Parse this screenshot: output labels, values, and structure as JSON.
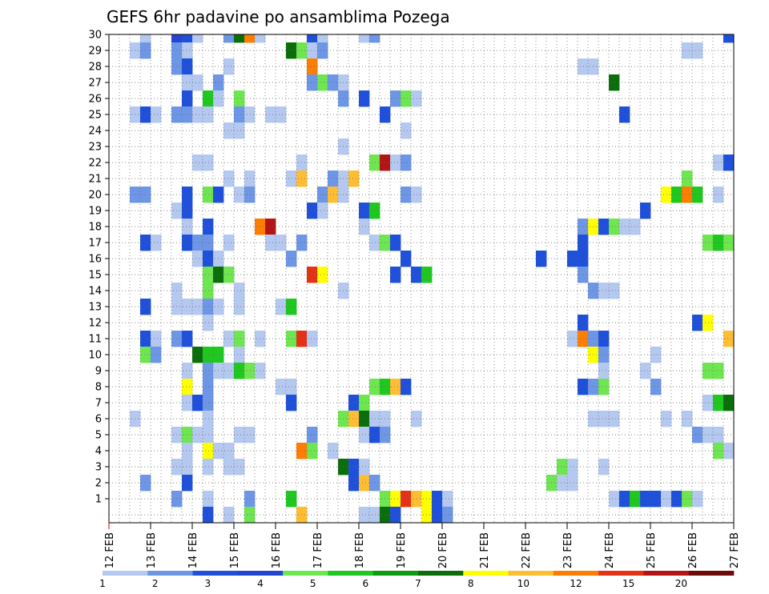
{
  "chart_data": {
    "type": "heatmap",
    "title": "GEFS 6hr padavine po ansamblima Pozega",
    "xlabel": "",
    "ylabel": "",
    "grid": true,
    "x_range": [
      0,
      60
    ],
    "y_range": [
      0,
      30
    ],
    "x_tick_labels": [
      "12 FEB",
      "13 FEB",
      "14 FEB",
      "15 FEB",
      "16 FEB",
      "17 FEB",
      "18 FEB",
      "19 FEB",
      "20 FEB",
      "21 FEB",
      "22 FEB",
      "23 FEB",
      "24 FEB",
      "25 FEB",
      "26 FEB",
      "27 FEB"
    ],
    "y_ticks": [
      1,
      2,
      3,
      4,
      5,
      6,
      7,
      8,
      9,
      10,
      11,
      12,
      13,
      14,
      15,
      16,
      17,
      18,
      19,
      20,
      21,
      22,
      23,
      24,
      25,
      26,
      27,
      28,
      29,
      30
    ],
    "colorbar": {
      "labels": [
        "1",
        "2",
        "3",
        "4",
        "5",
        "6",
        "7",
        "8",
        "10",
        "12",
        "15",
        "20"
      ],
      "colors": [
        "#b4c8f0",
        "#6e96e6",
        "#1e50dc",
        "#2346d2",
        "#6ee650",
        "#1ec81e",
        "#0f9b0f",
        "#0a6e0a",
        "#ffff00",
        "#ffbe32",
        "#ff7d00",
        "#e63214",
        "#b41414",
        "#6e0a0a"
      ]
    },
    "cells": [
      [
        30,
        3,
        "#b4c8f0"
      ],
      [
        30,
        6,
        "#2346d2"
      ],
      [
        30,
        7,
        "#1e50dc"
      ],
      [
        30,
        8,
        "#b4c8f0"
      ],
      [
        30,
        11,
        "#6e96e6"
      ],
      [
        30,
        12,
        "#0a6e0a"
      ],
      [
        30,
        13,
        "#ff7d00"
      ],
      [
        30,
        14,
        "#b4c8f0"
      ],
      [
        30,
        19,
        "#1e50dc"
      ],
      [
        30,
        20,
        "#b4c8f0"
      ],
      [
        30,
        24,
        "#b4c8f0"
      ],
      [
        30,
        25,
        "#6e96e6"
      ],
      [
        30,
        59,
        "#1e50dc"
      ],
      [
        29,
        2,
        "#b4c8f0"
      ],
      [
        29,
        3,
        "#6e96e6"
      ],
      [
        29,
        6,
        "#6e96e6"
      ],
      [
        29,
        7,
        "#b4c8f0"
      ],
      [
        29,
        17,
        "#0a6e0a"
      ],
      [
        29,
        18,
        "#6ee650"
      ],
      [
        29,
        19,
        "#b4c8f0"
      ],
      [
        29,
        20,
        "#6e96e6"
      ],
      [
        29,
        55,
        "#b4c8f0"
      ],
      [
        29,
        56,
        "#b4c8f0"
      ],
      [
        28,
        6,
        "#6e96e6"
      ],
      [
        28,
        7,
        "#1e50dc"
      ],
      [
        28,
        11,
        "#b4c8f0"
      ],
      [
        28,
        19,
        "#ff7d00"
      ],
      [
        28,
        45,
        "#b4c8f0"
      ],
      [
        28,
        46,
        "#b4c8f0"
      ],
      [
        27,
        7,
        "#b4c8f0"
      ],
      [
        27,
        8,
        "#b4c8f0"
      ],
      [
        27,
        10,
        "#6e96e6"
      ],
      [
        27,
        19,
        "#6e96e6"
      ],
      [
        27,
        20,
        "#6ee650"
      ],
      [
        27,
        21,
        "#6e96e6"
      ],
      [
        27,
        22,
        "#b4c8f0"
      ],
      [
        27,
        48,
        "#0a6e0a"
      ],
      [
        26,
        7,
        "#1e50dc"
      ],
      [
        26,
        9,
        "#1ec81e"
      ],
      [
        26,
        10,
        "#b4c8f0"
      ],
      [
        26,
        12,
        "#6ee650"
      ],
      [
        26,
        22,
        "#6e96e6"
      ],
      [
        26,
        24,
        "#1e50dc"
      ],
      [
        26,
        27,
        "#6e96e6"
      ],
      [
        26,
        28,
        "#6ee650"
      ],
      [
        26,
        29,
        "#b4c8f0"
      ],
      [
        25,
        2,
        "#b4c8f0"
      ],
      [
        25,
        3,
        "#1e50dc"
      ],
      [
        25,
        4,
        "#b4c8f0"
      ],
      [
        25,
        6,
        "#6e96e6"
      ],
      [
        25,
        7,
        "#6e96e6"
      ],
      [
        25,
        8,
        "#b4c8f0"
      ],
      [
        25,
        9,
        "#b4c8f0"
      ],
      [
        25,
        12,
        "#6e96e6"
      ],
      [
        25,
        13,
        "#b4c8f0"
      ],
      [
        25,
        15,
        "#b4c8f0"
      ],
      [
        25,
        16,
        "#b4c8f0"
      ],
      [
        25,
        26,
        "#1e50dc"
      ],
      [
        25,
        49,
        "#1e50dc"
      ],
      [
        24,
        11,
        "#b4c8f0"
      ],
      [
        24,
        12,
        "#b4c8f0"
      ],
      [
        24,
        28,
        "#b4c8f0"
      ],
      [
        23,
        22,
        "#b4c8f0"
      ],
      [
        22,
        8,
        "#b4c8f0"
      ],
      [
        22,
        9,
        "#b4c8f0"
      ],
      [
        22,
        18,
        "#b4c8f0"
      ],
      [
        22,
        25,
        "#6ee650"
      ],
      [
        22,
        26,
        "#b41414"
      ],
      [
        22,
        27,
        "#b4c8f0"
      ],
      [
        22,
        28,
        "#6e96e6"
      ],
      [
        22,
        58,
        "#b4c8f0"
      ],
      [
        22,
        59,
        "#1e50dc"
      ],
      [
        21,
        11,
        "#b4c8f0"
      ],
      [
        21,
        13,
        "#b4c8f0"
      ],
      [
        21,
        17,
        "#b4c8f0"
      ],
      [
        21,
        18,
        "#ffbe32"
      ],
      [
        21,
        21,
        "#6e96e6"
      ],
      [
        21,
        22,
        "#b4c8f0"
      ],
      [
        21,
        23,
        "#ffbe32"
      ],
      [
        21,
        55,
        "#6ee650"
      ],
      [
        20,
        2,
        "#6e96e6"
      ],
      [
        20,
        3,
        "#6e96e6"
      ],
      [
        20,
        7,
        "#1e50dc"
      ],
      [
        20,
        9,
        "#6ee650"
      ],
      [
        20,
        10,
        "#1e50dc"
      ],
      [
        20,
        12,
        "#b4c8f0"
      ],
      [
        20,
        13,
        "#6e96e6"
      ],
      [
        20,
        20,
        "#6e96e6"
      ],
      [
        20,
        21,
        "#ffbe32"
      ],
      [
        20,
        22,
        "#b4c8f0"
      ],
      [
        20,
        28,
        "#6e96e6"
      ],
      [
        20,
        29,
        "#b4c8f0"
      ],
      [
        20,
        53,
        "#ffff00"
      ],
      [
        20,
        54,
        "#1ec81e"
      ],
      [
        20,
        55,
        "#ff7d00"
      ],
      [
        20,
        56,
        "#1ec81e"
      ],
      [
        20,
        58,
        "#b4c8f0"
      ],
      [
        19,
        6,
        "#b4c8f0"
      ],
      [
        19,
        7,
        "#1e50dc"
      ],
      [
        19,
        19,
        "#1e50dc"
      ],
      [
        19,
        20,
        "#b4c8f0"
      ],
      [
        19,
        24,
        "#1e50dc"
      ],
      [
        19,
        25,
        "#1ec81e"
      ],
      [
        19,
        51,
        "#1e50dc"
      ],
      [
        18,
        7,
        "#b4c8f0"
      ],
      [
        18,
        9,
        "#1e50dc"
      ],
      [
        18,
        14,
        "#ff7d00"
      ],
      [
        18,
        15,
        "#b41414"
      ],
      [
        18,
        24,
        "#b4c8f0"
      ],
      [
        18,
        45,
        "#6e96e6"
      ],
      [
        18,
        46,
        "#ffff00"
      ],
      [
        18,
        47,
        "#1e50dc"
      ],
      [
        18,
        48,
        "#6ee650"
      ],
      [
        18,
        49,
        "#b4c8f0"
      ],
      [
        18,
        50,
        "#b4c8f0"
      ],
      [
        17,
        3,
        "#1e50dc"
      ],
      [
        17,
        4,
        "#b4c8f0"
      ],
      [
        17,
        7,
        "#1e50dc"
      ],
      [
        17,
        8,
        "#6e96e6"
      ],
      [
        17,
        9,
        "#6e96e6"
      ],
      [
        17,
        11,
        "#b4c8f0"
      ],
      [
        17,
        15,
        "#b4c8f0"
      ],
      [
        17,
        16,
        "#b4c8f0"
      ],
      [
        17,
        18,
        "#6e96e6"
      ],
      [
        17,
        25,
        "#b4c8f0"
      ],
      [
        17,
        26,
        "#6ee650"
      ],
      [
        17,
        27,
        "#1e50dc"
      ],
      [
        17,
        45,
        "#1e50dc"
      ],
      [
        17,
        57,
        "#6ee650"
      ],
      [
        17,
        58,
        "#1ec81e"
      ],
      [
        17,
        59,
        "#6ee650"
      ],
      [
        16,
        8,
        "#b4c8f0"
      ],
      [
        16,
        9,
        "#1e50dc"
      ],
      [
        16,
        10,
        "#b4c8f0"
      ],
      [
        16,
        17,
        "#6e96e6"
      ],
      [
        16,
        28,
        "#1e50dc"
      ],
      [
        16,
        41,
        "#1e50dc"
      ],
      [
        16,
        44,
        "#1e50dc"
      ],
      [
        16,
        45,
        "#1e50dc"
      ],
      [
        15,
        9,
        "#6ee650"
      ],
      [
        15,
        10,
        "#0a6e0a"
      ],
      [
        15,
        11,
        "#6ee650"
      ],
      [
        15,
        19,
        "#e63214"
      ],
      [
        15,
        20,
        "#ffff00"
      ],
      [
        15,
        27,
        "#1e50dc"
      ],
      [
        15,
        29,
        "#1e50dc"
      ],
      [
        15,
        30,
        "#1ec81e"
      ],
      [
        15,
        45,
        "#6e96e6"
      ],
      [
        14,
        6,
        "#b4c8f0"
      ],
      [
        14,
        9,
        "#6ee650"
      ],
      [
        14,
        12,
        "#b4c8f0"
      ],
      [
        14,
        22,
        "#b4c8f0"
      ],
      [
        14,
        46,
        "#6e96e6"
      ],
      [
        14,
        47,
        "#b4c8f0"
      ],
      [
        14,
        48,
        "#b4c8f0"
      ],
      [
        13,
        3,
        "#1e50dc"
      ],
      [
        13,
        6,
        "#b4c8f0"
      ],
      [
        13,
        7,
        "#b4c8f0"
      ],
      [
        13,
        8,
        "#b4c8f0"
      ],
      [
        13,
        9,
        "#6e96e6"
      ],
      [
        13,
        10,
        "#b4c8f0"
      ],
      [
        13,
        12,
        "#b4c8f0"
      ],
      [
        13,
        16,
        "#b4c8f0"
      ],
      [
        13,
        17,
        "#1ec81e"
      ],
      [
        12,
        9,
        "#b4c8f0"
      ],
      [
        12,
        45,
        "#1e50dc"
      ],
      [
        12,
        56,
        "#1e50dc"
      ],
      [
        12,
        57,
        "#ffff00"
      ],
      [
        11,
        3,
        "#1e50dc"
      ],
      [
        11,
        4,
        "#b4c8f0"
      ],
      [
        11,
        6,
        "#6e96e6"
      ],
      [
        11,
        7,
        "#1e50dc"
      ],
      [
        11,
        11,
        "#b4c8f0"
      ],
      [
        11,
        12,
        "#6ee650"
      ],
      [
        11,
        14,
        "#b4c8f0"
      ],
      [
        11,
        17,
        "#6ee650"
      ],
      [
        11,
        18,
        "#e63214"
      ],
      [
        11,
        19,
        "#b4c8f0"
      ],
      [
        11,
        44,
        "#b4c8f0"
      ],
      [
        11,
        45,
        "#ff7d00"
      ],
      [
        11,
        46,
        "#6e96e6"
      ],
      [
        11,
        47,
        "#1e50dc"
      ],
      [
        11,
        59,
        "#ffbe32"
      ],
      [
        10,
        3,
        "#6ee650"
      ],
      [
        10,
        4,
        "#6e96e6"
      ],
      [
        10,
        8,
        "#0a6e0a"
      ],
      [
        10,
        9,
        "#1ec81e"
      ],
      [
        10,
        10,
        "#1ec81e"
      ],
      [
        10,
        12,
        "#b4c8f0"
      ],
      [
        10,
        46,
        "#ffff00"
      ],
      [
        10,
        47,
        "#6e96e6"
      ],
      [
        10,
        52,
        "#b4c8f0"
      ],
      [
        9,
        7,
        "#b4c8f0"
      ],
      [
        9,
        9,
        "#6e96e6"
      ],
      [
        9,
        10,
        "#b4c8f0"
      ],
      [
        9,
        11,
        "#b4c8f0"
      ],
      [
        9,
        12,
        "#1ec81e"
      ],
      [
        9,
        13,
        "#6ee650"
      ],
      [
        9,
        14,
        "#b4c8f0"
      ],
      [
        9,
        47,
        "#b4c8f0"
      ],
      [
        9,
        51,
        "#b4c8f0"
      ],
      [
        9,
        57,
        "#6ee650"
      ],
      [
        9,
        58,
        "#6ee650"
      ],
      [
        8,
        7,
        "#ffff00"
      ],
      [
        8,
        9,
        "#6e96e6"
      ],
      [
        8,
        16,
        "#b4c8f0"
      ],
      [
        8,
        17,
        "#b4c8f0"
      ],
      [
        8,
        25,
        "#6ee650"
      ],
      [
        8,
        26,
        "#1ec81e"
      ],
      [
        8,
        27,
        "#ffbe32"
      ],
      [
        8,
        28,
        "#1e50dc"
      ],
      [
        8,
        45,
        "#1e50dc"
      ],
      [
        8,
        46,
        "#6e96e6"
      ],
      [
        8,
        47,
        "#6ee650"
      ],
      [
        8,
        52,
        "#6e96e6"
      ],
      [
        7,
        7,
        "#b4c8f0"
      ],
      [
        7,
        8,
        "#1e50dc"
      ],
      [
        7,
        9,
        "#6e96e6"
      ],
      [
        7,
        17,
        "#1e50dc"
      ],
      [
        7,
        23,
        "#1e50dc"
      ],
      [
        7,
        24,
        "#6ee650"
      ],
      [
        7,
        57,
        "#b4c8f0"
      ],
      [
        7,
        58,
        "#1ec81e"
      ],
      [
        7,
        59,
        "#0a6e0a"
      ],
      [
        6,
        2,
        "#b4c8f0"
      ],
      [
        6,
        9,
        "#b4c8f0"
      ],
      [
        6,
        22,
        "#6ee650"
      ],
      [
        6,
        23,
        "#ffbe32"
      ],
      [
        6,
        24,
        "#0a6e0a"
      ],
      [
        6,
        25,
        "#b4c8f0"
      ],
      [
        6,
        26,
        "#b4c8f0"
      ],
      [
        6,
        29,
        "#b4c8f0"
      ],
      [
        6,
        46,
        "#b4c8f0"
      ],
      [
        6,
        47,
        "#b4c8f0"
      ],
      [
        6,
        48,
        "#b4c8f0"
      ],
      [
        6,
        53,
        "#b4c8f0"
      ],
      [
        6,
        55,
        "#b4c8f0"
      ],
      [
        5,
        6,
        "#b4c8f0"
      ],
      [
        5,
        7,
        "#6ee650"
      ],
      [
        5,
        8,
        "#b4c8f0"
      ],
      [
        5,
        9,
        "#b4c8f0"
      ],
      [
        5,
        12,
        "#b4c8f0"
      ],
      [
        5,
        13,
        "#b4c8f0"
      ],
      [
        5,
        19,
        "#6e96e6"
      ],
      [
        5,
        24,
        "#b4c8f0"
      ],
      [
        5,
        25,
        "#1e50dc"
      ],
      [
        5,
        26,
        "#6e96e6"
      ],
      [
        5,
        56,
        "#6e96e6"
      ],
      [
        5,
        57,
        "#b4c8f0"
      ],
      [
        5,
        58,
        "#b4c8f0"
      ],
      [
        4,
        7,
        "#b4c8f0"
      ],
      [
        4,
        9,
        "#ffff00"
      ],
      [
        4,
        10,
        "#b4c8f0"
      ],
      [
        4,
        11,
        "#b4c8f0"
      ],
      [
        4,
        18,
        "#ff7d00"
      ],
      [
        4,
        19,
        "#6ee650"
      ],
      [
        4,
        21,
        "#b4c8f0"
      ],
      [
        4,
        58,
        "#6ee650"
      ],
      [
        4,
        59,
        "#b4c8f0"
      ],
      [
        3,
        6,
        "#b4c8f0"
      ],
      [
        3,
        7,
        "#b4c8f0"
      ],
      [
        3,
        9,
        "#b4c8f0"
      ],
      [
        3,
        11,
        "#b4c8f0"
      ],
      [
        3,
        12,
        "#b4c8f0"
      ],
      [
        3,
        22,
        "#0a6e0a"
      ],
      [
        3,
        23,
        "#1e50dc"
      ],
      [
        3,
        24,
        "#b4c8f0"
      ],
      [
        3,
        43,
        "#6ee650"
      ],
      [
        3,
        44,
        "#b4c8f0"
      ],
      [
        3,
        47,
        "#b4c8f0"
      ],
      [
        2,
        3,
        "#6e96e6"
      ],
      [
        2,
        7,
        "#1e50dc"
      ],
      [
        2,
        23,
        "#1e50dc"
      ],
      [
        2,
        24,
        "#ffbe32"
      ],
      [
        2,
        25,
        "#6e96e6"
      ],
      [
        2,
        42,
        "#6ee650"
      ],
      [
        2,
        43,
        "#b4c8f0"
      ],
      [
        2,
        44,
        "#b4c8f0"
      ],
      [
        1,
        6,
        "#6e96e6"
      ],
      [
        1,
        9,
        "#b4c8f0"
      ],
      [
        1,
        13,
        "#6e96e6"
      ],
      [
        1,
        17,
        "#1ec81e"
      ],
      [
        1,
        26,
        "#6ee650"
      ],
      [
        1,
        27,
        "#ffff00"
      ],
      [
        1,
        28,
        "#e63214"
      ],
      [
        1,
        29,
        "#ffbe32"
      ],
      [
        1,
        30,
        "#ffff00"
      ],
      [
        1,
        31,
        "#1e50dc"
      ],
      [
        1,
        32,
        "#b4c8f0"
      ],
      [
        1,
        48,
        "#b4c8f0"
      ],
      [
        1,
        49,
        "#1e50dc"
      ],
      [
        1,
        50,
        "#1ec81e"
      ],
      [
        1,
        51,
        "#1e50dc"
      ],
      [
        1,
        52,
        "#1e50dc"
      ],
      [
        1,
        53,
        "#b4c8f0"
      ],
      [
        1,
        54,
        "#1e50dc"
      ],
      [
        1,
        55,
        "#6ee650"
      ],
      [
        1,
        56,
        "#b4c8f0"
      ],
      [
        0,
        9,
        "#1e50dc"
      ],
      [
        0,
        11,
        "#b4c8f0"
      ],
      [
        0,
        13,
        "#6ee650"
      ],
      [
        0,
        18,
        "#ffbe32"
      ],
      [
        0,
        24,
        "#b4c8f0"
      ],
      [
        0,
        25,
        "#b4c8f0"
      ],
      [
        0,
        26,
        "#0a6e0a"
      ],
      [
        0,
        27,
        "#1e50dc"
      ],
      [
        0,
        30,
        "#ffff00"
      ],
      [
        0,
        31,
        "#1e50dc"
      ],
      [
        0,
        32,
        "#6e96e6"
      ]
    ]
  }
}
